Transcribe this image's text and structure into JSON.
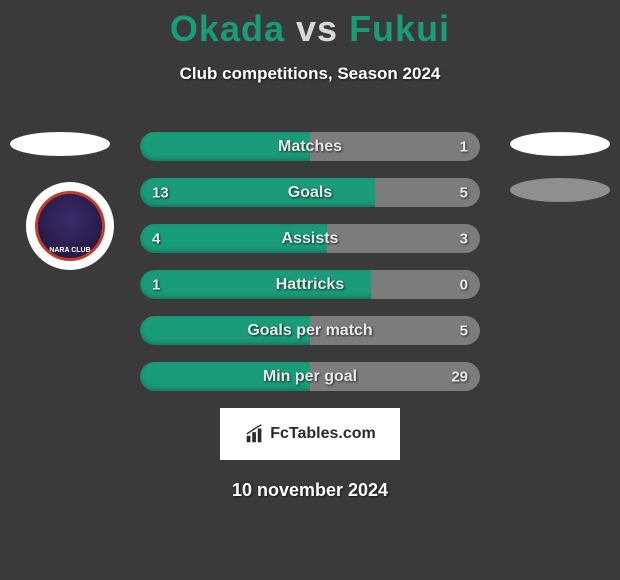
{
  "header": {
    "player1": "Okada",
    "vs": "vs",
    "player2": "Fukui",
    "subtitle": "Club competitions, Season 2024"
  },
  "colors": {
    "background": "#3a3a3a",
    "accent": "#1a9b7a",
    "grey_bar": "#7c7c7c",
    "text_white": "#ffffff"
  },
  "bars": [
    {
      "label": "Matches",
      "left": "",
      "right": "1",
      "rightFillPct": 50
    },
    {
      "label": "Goals",
      "left": "13",
      "right": "5",
      "rightFillPct": 31
    },
    {
      "label": "Assists",
      "left": "4",
      "right": "3",
      "rightFillPct": 45
    },
    {
      "label": "Hattricks",
      "left": "1",
      "right": "0",
      "rightFillPct": 32
    },
    {
      "label": "Goals per match",
      "left": "",
      "right": "5",
      "rightFillPct": 50
    },
    {
      "label": "Min per goal",
      "left": "",
      "right": "29",
      "rightFillPct": 50
    }
  ],
  "brand": "FcTables.com",
  "date": "10 november 2024",
  "badge": {
    "club_text": "NARA CLUB"
  }
}
